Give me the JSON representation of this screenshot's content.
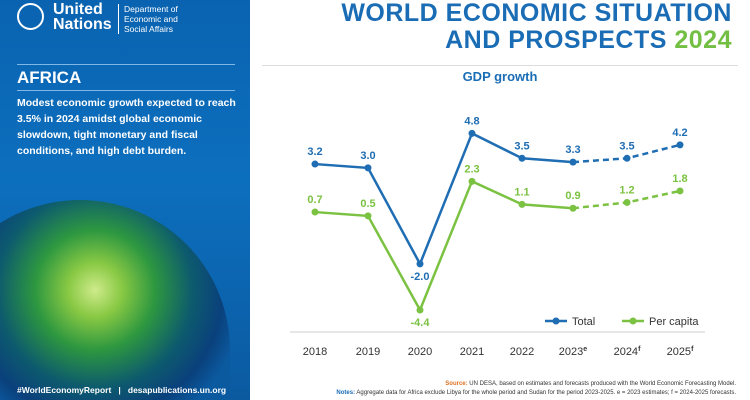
{
  "header": {
    "org_line1": "United",
    "org_line2": "Nations",
    "dept_line1": "Department of",
    "dept_line2": "Economic and",
    "dept_line3": "Social Affairs",
    "title_line1": "WORLD ECONOMIC SITUATION",
    "title_line2": "AND PROSPECTS",
    "title_year": "2024"
  },
  "sidebar": {
    "region": "AFRICA",
    "description": "Modest economic growth expected to reach 3.5% in 2024 amidst global economic slowdown, tight monetary and fiscal conditions, and high debt burden.",
    "hashtag": "#WorldEconomyReport",
    "separator": "|",
    "website": "desapublications.un.org"
  },
  "footer": {
    "source_label": "Source:",
    "source_text": " UN DESA, based on estimates and forecasts produced with the World Economic Forecasting Model.",
    "notes_label": "Notes:",
    "notes_text": " Aggregate data for Africa exclude Libya for the whole period and Sudan for the period 2023-2025. e = 2023 estimates; f = 2024-2025 forecasts."
  },
  "colors": {
    "total": "#1f6db3",
    "per_capita": "#7cc242"
  },
  "chart_data": {
    "type": "line",
    "title": "GDP growth",
    "categories": [
      "2018",
      "2019",
      "2020",
      "2021",
      "2022",
      "2023",
      "2024",
      "2025"
    ],
    "category_suffixes": [
      "",
      "",
      "",
      "",
      "",
      "e",
      "f",
      "f"
    ],
    "forecast_from_index": 5,
    "series": [
      {
        "name": "Total",
        "values": [
          3.2,
          3.0,
          -2.0,
          4.8,
          3.5,
          3.3,
          3.5,
          4.2
        ]
      },
      {
        "name": "Per capita",
        "values": [
          0.7,
          0.5,
          -4.4,
          2.3,
          1.1,
          0.9,
          1.2,
          1.8
        ]
      }
    ],
    "legend": "bottom-right",
    "ylim": [
      -4.4,
      4.8
    ]
  }
}
